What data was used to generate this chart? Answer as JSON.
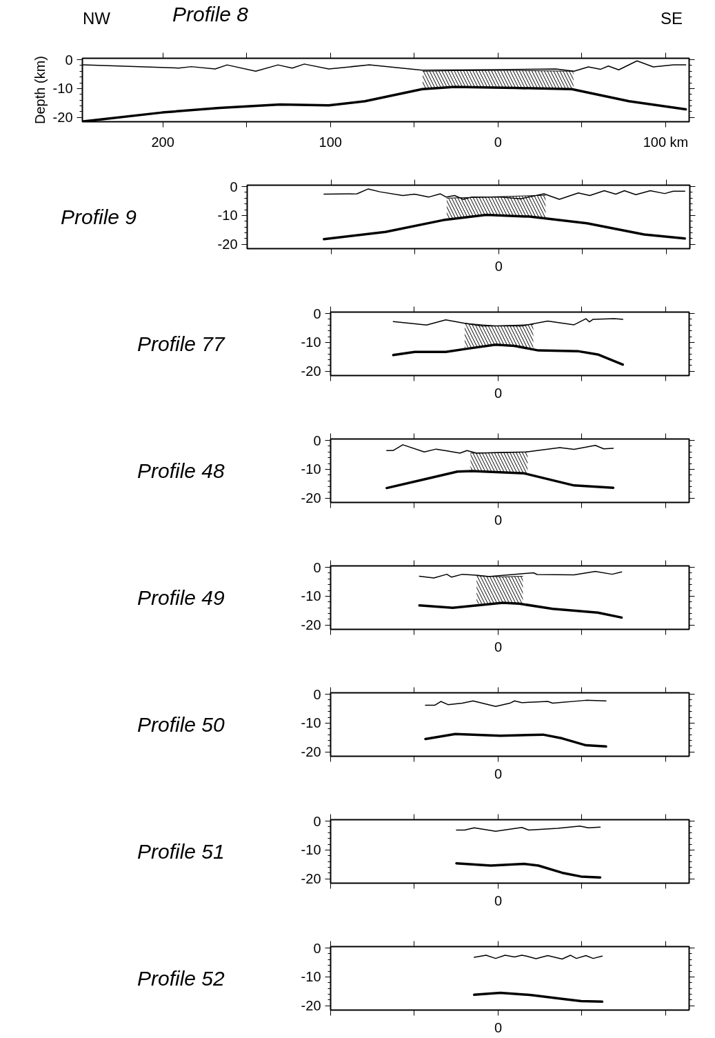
{
  "chart_data": [
    {
      "type": "line",
      "title": "Profile 8",
      "ylabel": "Depth (km)",
      "annotations": [
        "NW",
        "SE"
      ],
      "xlim": [
        248,
        -114
      ],
      "ylim": [
        -21.5,
        0.5
      ],
      "yticks": [
        0,
        -10,
        -20
      ],
      "xticks": [
        200,
        {
          "value": 150,
          "label": null
        },
        100,
        {
          "value": 50,
          "label": null
        },
        0,
        {
          "value": -50,
          "label": null
        },
        {
          "value": -100,
          "label": "100 km"
        }
      ],
      "series": [
        {
          "color": "#000000",
          "x": [
            247.5,
            190.6,
            183,
            168.8,
            161.7,
            144.6,
            131.3,
            122.8,
            115.6,
            101,
            76.8,
            45.3,
            14,
            -34.5,
            -45.3,
            -53.9,
            -61.2,
            -65.8,
            -72,
            -82.9,
            -92.6,
            -104.7,
            -112
          ],
          "values": [
            -1.8,
            -2.9,
            -2.4,
            -3.2,
            -1.8,
            -4.0,
            -1.8,
            -2.9,
            -1.5,
            -3.2,
            -1.8,
            -3.6,
            -3.5,
            -3.2,
            -4.0,
            -2.5,
            -3.3,
            -2.2,
            -3.5,
            -0.4,
            -2.5,
            -1.8,
            -1.8
          ]
        },
        {
          "color": "#000000",
          "x": [
            247.5,
            200.4,
            166.4,
            130,
            101,
            79.4,
            45.3,
            26,
            -10.3,
            -44,
            -78.1,
            -112
          ],
          "values": [
            -21.4,
            -18.3,
            -16.7,
            -15.5,
            -15.8,
            -14.4,
            -10.2,
            -9.4,
            -9.8,
            -10.2,
            -14.4,
            -17.2
          ]
        },
        {
          "type": "line",
          "color": "#000000",
          "x": [
            45,
            26,
            -10,
            -45
          ],
          "values": [
            -4.0,
            -3.8,
            -3.7,
            -4.0
          ],
          "upper": [
            -4.0,
            -3.8,
            -3.7,
            -4.0
          ],
          "lower": [
            -10.2,
            -9.4,
            -9.8,
            -10.2
          ]
        }
      ]
    },
    {
      "type": "line",
      "title": "Profile 9",
      "tick_labels": "y",
      "annotations": [
        "0"
      ],
      "xlim": [
        150,
        -114
      ],
      "ylim": [
        -21.5,
        0.5
      ],
      "yticks": [
        0,
        -10,
        -20
      ],
      "xticks": [
        100,
        50,
        0,
        -50,
        -100
      ],
      "series": [
        {
          "color": "#000000",
          "x": [
            104.2,
            84.5,
            77.8,
            70.8,
            57.2,
            50.2,
            41.6,
            34.8,
            31.4,
            26.3,
            21.1,
            16,
            -1.2,
            -13.2,
            -27,
            -36.2,
            -47.5,
            -54.3,
            -63,
            -69.8,
            -75,
            -81.8,
            -90.4,
            -99,
            -104.1,
            -111
          ],
          "values": [
            -2.6,
            -2.5,
            -0.8,
            -1.8,
            -3.1,
            -2.6,
            -3.6,
            -2.5,
            -3.6,
            -3.1,
            -4.4,
            -3.6,
            -3.6,
            -4.2,
            -2.5,
            -4.4,
            -2.2,
            -3.1,
            -1.4,
            -2.6,
            -1.4,
            -2.8,
            -1.4,
            -2.4,
            -1.6,
            -1.6
          ]
        },
        {
          "color": "#000000",
          "x": [
            104.2,
            67.5,
            33,
            7.4,
            -18.4,
            -52.7,
            -86.8,
            -111
          ],
          "values": [
            -18.2,
            -15.7,
            -11.6,
            -9.8,
            -10.4,
            -12.7,
            -16.6,
            -18
          ]
        },
        {
          "type": "line",
          "color": "#000000",
          "x": [
            31,
            7,
            -28
          ],
          "values": [
            -4.0,
            -3.6,
            -3.0
          ],
          "upper": [
            -4.0,
            -3.6,
            -3.0
          ],
          "lower": [
            -11.5,
            -9.8,
            -11.0
          ]
        }
      ]
    },
    {
      "type": "line",
      "title": "Profile 77",
      "tick_labels": "y",
      "annotations": [
        "0"
      ],
      "xlim": [
        100,
        -114
      ],
      "ylim": [
        -21.5,
        0.5
      ],
      "yticks": [
        0,
        -10,
        -20
      ],
      "xticks": [
        100,
        50,
        0,
        -50,
        -100
      ],
      "series": [
        {
          "color": "#000000",
          "x": [
            62.6,
            42.7,
            31.3,
            20,
            10,
            -14.1,
            -29.6,
            -45.3,
            -52.4,
            -54.5,
            -56.7,
            -69.4,
            -74.4
          ],
          "values": [
            -2.8,
            -4.0,
            -2.2,
            -3.4,
            -4.3,
            -4.3,
            -2.6,
            -3.9,
            -1.8,
            -2.9,
            -2.0,
            -1.8,
            -2.0
          ]
        },
        {
          "color": "#000000",
          "x": [
            62.6,
            49.8,
            31.3,
            18.6,
            1.5,
            -9.8,
            -24,
            -48.1,
            -59.5,
            -74.4
          ],
          "values": [
            -14.4,
            -13.3,
            -13.3,
            -12.2,
            -10.8,
            -11.2,
            -12.8,
            -13.1,
            -14.2,
            -17.7
          ]
        },
        {
          "type": "line",
          "color": "#000000",
          "x": [
            20,
            1.5,
            -21
          ],
          "values": [
            -3.4,
            -4.3,
            -3.8
          ],
          "upper": [
            -3.4,
            -4.3,
            -3.8
          ],
          "lower": [
            -11.8,
            -10.8,
            -12.0
          ]
        }
      ]
    },
    {
      "type": "line",
      "title": "Profile 48",
      "tick_labels": "y",
      "annotations": [
        "0"
      ],
      "xlim": [
        100,
        -114
      ],
      "ylim": [
        -21.5,
        0.5
      ],
      "yticks": [
        0,
        -10,
        -20
      ],
      "xticks": [
        100,
        50,
        0,
        -50,
        -100
      ],
      "series": [
        {
          "color": "#000000",
          "x": [
            66.5,
            62.6,
            56.9,
            44.1,
            37,
            29.9,
            22.8,
            18.6,
            12.9,
            -16.9,
            -36.8,
            -45.3,
            -58,
            -63,
            -68.7
          ],
          "values": [
            -3.5,
            -3.5,
            -1.5,
            -4.0,
            -3.0,
            -3.7,
            -4.4,
            -3.5,
            -4.4,
            -4.0,
            -2.5,
            -3.1,
            -1.7,
            -2.9,
            -2.7
          ]
        },
        {
          "color": "#000000",
          "x": [
            66.5,
            44.1,
            24.3,
            15.7,
            -15.5,
            -45.3,
            -68.7
          ],
          "values": [
            -16.5,
            -13.5,
            -10.8,
            -10.6,
            -11.4,
            -15.6,
            -16.4
          ]
        },
        {
          "type": "line",
          "color": "#000000",
          "x": [
            16.5,
            0,
            -17.6
          ],
          "values": [
            -4.4,
            -4.2,
            -4.0
          ],
          "upper": [
            -4.4,
            -4.2,
            -4.0
          ],
          "lower": [
            -10.6,
            -11.0,
            -11.5
          ]
        }
      ]
    },
    {
      "type": "line",
      "title": "Profile 49",
      "tick_labels": "y",
      "annotations": [
        "0"
      ],
      "xlim": [
        100,
        -114
      ],
      "ylim": [
        -21.5,
        0.5
      ],
      "yticks": [
        0,
        -10,
        -20
      ],
      "xticks": [
        100,
        50,
        0,
        -50,
        -100
      ],
      "series": [
        {
          "color": "#000000",
          "x": [
            47,
            38.4,
            30.6,
            27.8,
            21.4,
            12.9,
            5.8,
            -21.1,
            -23.3,
            -45.3,
            -58,
            -68,
            -73.7
          ],
          "values": [
            -3.1,
            -3.7,
            -2.4,
            -3.4,
            -2.4,
            -2.7,
            -3.2,
            -1.9,
            -2.5,
            -2.6,
            -1.4,
            -2.4,
            -1.6
          ]
        },
        {
          "color": "#000000",
          "x": [
            47,
            27.1,
            -2.7,
            -12.7,
            -32.5,
            -59.5,
            -73.7
          ],
          "values": [
            -13.2,
            -14.0,
            -12.3,
            -12.6,
            -14.4,
            -15.7,
            -17.4
          ]
        },
        {
          "type": "line",
          "color": "#000000",
          "x": [
            12.9,
            -2.7,
            -14.8
          ],
          "values": [
            -2.9,
            -3.3,
            -3.1
          ],
          "upper": [
            -2.9,
            -3.3,
            -3.1
          ],
          "lower": [
            -12.6,
            -12.3,
            -12.7
          ]
        }
      ]
    },
    {
      "type": "line",
      "title": "Profile 50",
      "tick_labels": "y",
      "annotations": [
        "0"
      ],
      "xlim": [
        100,
        -114
      ],
      "ylim": [
        -21.5,
        0.5
      ],
      "yticks": [
        0,
        -10,
        -20
      ],
      "xticks": [
        100,
        50,
        0,
        -50,
        -100
      ],
      "series": [
        {
          "color": "#000000",
          "x": [
            43.4,
            37.7,
            34.2,
            29.9,
            21.4,
            15,
            1.5,
            -7,
            -9.8,
            -14.1,
            -29.6,
            -32.5,
            -52.4,
            -64.4
          ],
          "values": [
            -3.8,
            -3.8,
            -2.5,
            -3.6,
            -3.1,
            -2.3,
            -4.2,
            -3.1,
            -2.3,
            -2.9,
            -2.5,
            -3.1,
            -2.1,
            -2.3
          ]
        },
        {
          "color": "#000000",
          "x": [
            43.4,
            25.6,
            -1.3,
            -26.8,
            -38.2,
            -52.4,
            -64.4
          ],
          "values": [
            -15.5,
            -13.8,
            -14.4,
            -14.0,
            -15.3,
            -17.7,
            -18.1
          ]
        }
      ]
    },
    {
      "type": "line",
      "title": "Profile 51",
      "tick_labels": "y",
      "annotations": [
        "0"
      ],
      "xlim": [
        100,
        -114
      ],
      "ylim": [
        -21.5,
        0.5
      ],
      "yticks": [
        0,
        -10,
        -20
      ],
      "xticks": [
        100,
        50,
        0,
        -50,
        -100
      ],
      "series": [
        {
          "color": "#000000",
          "x": [
            24.9,
            20,
            14.3,
            1.5,
            -14.1,
            -18.4,
            -35.4,
            -48.8,
            -53.8,
            -60.9
          ],
          "values": [
            -3.1,
            -3.1,
            -2.3,
            -3.5,
            -2.2,
            -3.1,
            -2.5,
            -1.7,
            -2.3,
            -2.1
          ]
        },
        {
          "color": "#000000",
          "x": [
            24.9,
            4.4,
            -15.5,
            -24,
            -38.2,
            -49.5,
            -60.9
          ],
          "values": [
            -14.6,
            -15.4,
            -14.8,
            -15.4,
            -17.9,
            -19.2,
            -19.5
          ]
        }
      ]
    },
    {
      "type": "line",
      "title": "Profile 52",
      "tick_labels": "y",
      "annotations": [
        "0"
      ],
      "xlim": [
        100,
        -114
      ],
      "ylim": [
        -21.5,
        0.5
      ],
      "yticks": [
        0,
        -10,
        -20
      ],
      "xticks": [
        100,
        50,
        0,
        -50,
        -100
      ],
      "series": [
        {
          "color": "#000000",
          "x": [
            14.3,
            7.2,
            1.5,
            -4.1,
            -9.8,
            -14.1,
            -16.9,
            -22.6,
            -29.6,
            -38.2,
            -43.2,
            -46.7,
            -52.4,
            -56.7,
            -62.1
          ],
          "values": [
            -3.2,
            -2.5,
            -3.6,
            -2.5,
            -3.1,
            -2.5,
            -2.8,
            -3.7,
            -2.6,
            -3.8,
            -2.5,
            -3.6,
            -2.6,
            -3.6,
            -2.8
          ]
        },
        {
          "color": "#000000",
          "x": [
            14.3,
            -1.3,
            -19.8,
            -38.2,
            -49.5,
            -62.1
          ],
          "values": [
            -16.2,
            -15.5,
            -16.3,
            -17.6,
            -18.4,
            -18.6
          ]
        }
      ]
    }
  ]
}
